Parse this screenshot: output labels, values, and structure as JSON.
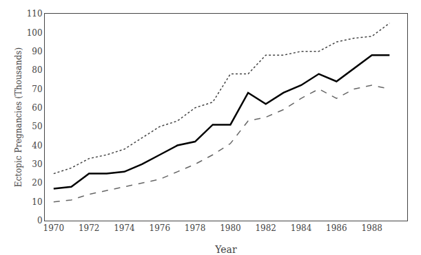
{
  "chart_data": {
    "type": "line",
    "x": [
      1970,
      1971,
      1972,
      1973,
      1974,
      1975,
      1976,
      1977,
      1978,
      1979,
      1980,
      1981,
      1982,
      1983,
      1984,
      1985,
      1986,
      1987,
      1988,
      1989
    ],
    "series": [
      {
        "color": "#444444",
        "line_style": "dotted",
        "values": [
          25,
          28,
          33,
          35,
          38,
          44,
          50,
          53,
          60,
          63,
          78,
          78,
          88,
          88,
          90,
          90,
          95,
          97,
          98,
          105
        ]
      },
      {
        "color": "#666666",
        "line_style": "dashed",
        "values": [
          10,
          11,
          14,
          16,
          18,
          20,
          22,
          26,
          30,
          35,
          41,
          53,
          55,
          59,
          65,
          70,
          65,
          70,
          72,
          70
        ]
      },
      {
        "color": "#000000",
        "line_style": "solid",
        "values": [
          17,
          18,
          25,
          25,
          26,
          30,
          35,
          40,
          42,
          51,
          51,
          68,
          62,
          68,
          72,
          78,
          74,
          81,
          88,
          88
        ]
      }
    ],
    "xlabel": "Year",
    "ylabel": "Ectopic Pregnancies (Thousands)",
    "xlim": [
      1969.5,
      1990.0
    ],
    "ylim": [
      0,
      110
    ],
    "xticks": [
      1970,
      1972,
      1974,
      1976,
      1978,
      1980,
      1982,
      1984,
      1986,
      1988
    ],
    "yticks": [
      0,
      10,
      20,
      30,
      40,
      50,
      60,
      70,
      80,
      90,
      100,
      110
    ],
    "grid": false
  }
}
